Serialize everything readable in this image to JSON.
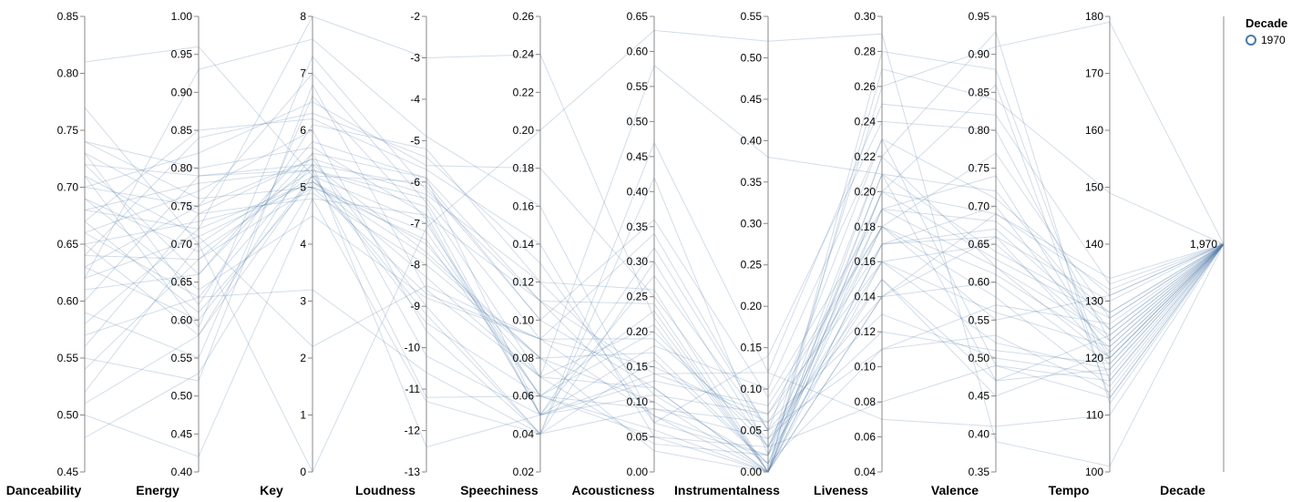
{
  "chart_data": {
    "type": "parallel_coordinates",
    "line_color": "#4c78a8",
    "axis_color": "#888888",
    "axes": [
      {
        "name": "Danceability",
        "min": 0.45,
        "max": 0.85,
        "ticks": [
          "0.45",
          "0.50",
          "0.55",
          "0.60",
          "0.65",
          "0.70",
          "0.75",
          "0.80",
          "0.85"
        ]
      },
      {
        "name": "Energy",
        "min": 0.4,
        "max": 1.0,
        "ticks": [
          "0.40",
          "0.45",
          "0.50",
          "0.55",
          "0.60",
          "0.65",
          "0.70",
          "0.75",
          "0.80",
          "0.85",
          "0.90",
          "0.95",
          "1.00"
        ]
      },
      {
        "name": "Key",
        "min": 0,
        "max": 8,
        "ticks": [
          "0",
          "1",
          "2",
          "3",
          "4",
          "5",
          "6",
          "7",
          "8"
        ]
      },
      {
        "name": "Loudness",
        "min": -13,
        "max": -2,
        "ticks": [
          "-13",
          "-12",
          "-11",
          "-10",
          "-9",
          "-8",
          "-7",
          "-6",
          "-5",
          "-4",
          "-3",
          "-2"
        ]
      },
      {
        "name": "Speechiness",
        "min": 0.02,
        "max": 0.26,
        "ticks": [
          "0.02",
          "0.04",
          "0.06",
          "0.08",
          "0.10",
          "0.12",
          "0.14",
          "0.16",
          "0.18",
          "0.20",
          "0.22",
          "0.24",
          "0.26"
        ]
      },
      {
        "name": "Acousticness",
        "min": 0.0,
        "max": 0.65,
        "ticks": [
          "0.00",
          "0.05",
          "0.10",
          "0.15",
          "0.20",
          "0.25",
          "0.30",
          "0.35",
          "0.40",
          "0.45",
          "0.50",
          "0.55",
          "0.60",
          "0.65"
        ]
      },
      {
        "name": "Instrumentalness",
        "min": 0.0,
        "max": 0.55,
        "ticks": [
          "0.00",
          "0.05",
          "0.10",
          "0.15",
          "0.20",
          "0.25",
          "0.30",
          "0.35",
          "0.40",
          "0.45",
          "0.50",
          "0.55"
        ]
      },
      {
        "name": "Liveness",
        "min": 0.04,
        "max": 0.3,
        "ticks": [
          "0.04",
          "0.06",
          "0.08",
          "0.10",
          "0.12",
          "0.14",
          "0.16",
          "0.18",
          "0.20",
          "0.22",
          "0.24",
          "0.26",
          "0.28",
          "0.30"
        ]
      },
      {
        "name": "Valence",
        "min": 0.35,
        "max": 0.95,
        "ticks": [
          "0.35",
          "0.40",
          "0.45",
          "0.50",
          "0.55",
          "0.60",
          "0.65",
          "0.70",
          "0.75",
          "0.80",
          "0.85",
          "0.90",
          "0.95"
        ]
      },
      {
        "name": "Tempo",
        "min": 100,
        "max": 180,
        "ticks": [
          "100",
          "110",
          "120",
          "130",
          "140",
          "150",
          "160",
          "170",
          "180"
        ]
      },
      {
        "name": "Decade",
        "min": 1969,
        "max": 1971,
        "ticks": [
          "1,970"
        ]
      }
    ],
    "legend": {
      "title": "Decade",
      "entries": [
        "1970"
      ],
      "placement": "top-right"
    },
    "records": [
      [
        0.81,
        0.96,
        5.2,
        -6.0,
        0.1,
        0.12,
        0.0,
        0.22,
        0.62,
        120,
        1970
      ],
      [
        0.77,
        0.7,
        5.3,
        -6.4,
        0.09,
        0.08,
        0.02,
        0.19,
        0.68,
        128,
        1970
      ],
      [
        0.74,
        0.76,
        5.0,
        -7.2,
        0.06,
        0.05,
        0.03,
        0.16,
        0.65,
        123,
        1970
      ],
      [
        0.73,
        0.62,
        6.1,
        -5.2,
        0.12,
        0.26,
        0.0,
        0.14,
        0.6,
        119,
        1970
      ],
      [
        0.73,
        0.74,
        4.8,
        -6.8,
        0.05,
        0.11,
        0.07,
        0.18,
        0.55,
        131,
        1970
      ],
      [
        0.72,
        0.79,
        5.4,
        -7.7,
        0.08,
        0.17,
        0.01,
        0.21,
        0.72,
        125,
        1970
      ],
      [
        0.72,
        0.66,
        5.6,
        -5.9,
        0.05,
        0.32,
        0.05,
        0.23,
        0.49,
        113,
        1970
      ],
      [
        0.71,
        0.71,
        5.1,
        -8.3,
        0.07,
        0.21,
        0.0,
        0.17,
        0.7,
        121,
        1970
      ],
      [
        0.71,
        0.59,
        7.3,
        -6.2,
        0.11,
        0.14,
        0.12,
        0.25,
        0.82,
        133,
        1970
      ],
      [
        0.7,
        0.75,
        5.5,
        -9.0,
        0.04,
        0.09,
        0.06,
        0.13,
        0.5,
        117,
        1970
      ],
      [
        0.7,
        0.82,
        6.5,
        -5.6,
        0.18,
        0.25,
        0.03,
        0.2,
        0.63,
        127,
        1970
      ],
      [
        0.69,
        0.69,
        5.2,
        -7.0,
        0.06,
        0.06,
        0.0,
        0.28,
        0.88,
        116,
        1970
      ],
      [
        0.69,
        0.64,
        4.5,
        -8.8,
        0.09,
        0.19,
        0.04,
        0.15,
        0.47,
        124,
        1970
      ],
      [
        0.68,
        0.78,
        5.3,
        -6.6,
        0.05,
        0.13,
        0.08,
        0.18,
        0.61,
        122,
        1970
      ],
      [
        0.68,
        0.72,
        8.0,
        -3.0,
        0.24,
        0.22,
        0.0,
        0.17,
        0.66,
        130,
        1970
      ],
      [
        0.67,
        0.61,
        5.1,
        -7.5,
        0.07,
        0.04,
        0.02,
        0.22,
        0.93,
        112,
        1970
      ],
      [
        0.66,
        0.77,
        6.0,
        -9.6,
        0.04,
        0.16,
        0.01,
        0.11,
        0.57,
        126,
        1970
      ],
      [
        0.66,
        0.63,
        5.4,
        -6.1,
        0.1,
        0.36,
        0.09,
        0.19,
        0.74,
        120,
        1970
      ],
      [
        0.65,
        0.73,
        4.9,
        -8.0,
        0.08,
        0.1,
        0.0,
        0.16,
        0.52,
        118,
        1970
      ],
      [
        0.65,
        0.58,
        5.6,
        -10.2,
        0.05,
        0.28,
        0.05,
        0.14,
        0.69,
        134,
        1970
      ],
      [
        0.64,
        0.84,
        6.3,
        -5.4,
        0.13,
        0.07,
        0.14,
        0.24,
        0.8,
        123,
        1970
      ],
      [
        0.64,
        0.68,
        5.0,
        -7.4,
        0.06,
        0.2,
        0.03,
        0.18,
        0.58,
        115,
        1970
      ],
      [
        0.63,
        0.75,
        7.0,
        -6.5,
        0.07,
        0.12,
        0.0,
        0.21,
        0.64,
        128,
        1970
      ],
      [
        0.63,
        0.6,
        5.2,
        -9.2,
        0.04,
        0.42,
        0.02,
        0.15,
        0.45,
        121,
        1970
      ],
      [
        0.62,
        0.71,
        2.2,
        -8.5,
        0.09,
        0.15,
        0.06,
        0.17,
        0.67,
        125,
        1970
      ],
      [
        0.61,
        0.66,
        5.8,
        -5.9,
        0.11,
        0.24,
        0.0,
        0.2,
        0.86,
        113,
        1970
      ],
      [
        0.6,
        0.79,
        5.3,
        -11.2,
        0.06,
        0.09,
        0.04,
        0.12,
        0.51,
        119,
        1970
      ],
      [
        0.59,
        0.55,
        6.6,
        -6.9,
        0.05,
        0.18,
        0.1,
        0.23,
        0.71,
        131,
        1970
      ],
      [
        0.58,
        0.72,
        5.1,
        -7.8,
        0.08,
        0.03,
        0.0,
        0.19,
        0.62,
        124,
        1970
      ],
      [
        0.57,
        0.63,
        3.2,
        -10.6,
        0.04,
        0.3,
        0.03,
        0.08,
        0.49,
        116,
        1970
      ],
      [
        0.56,
        0.74,
        5.5,
        -6.3,
        0.12,
        0.11,
        0.01,
        0.18,
        0.77,
        127,
        1970
      ],
      [
        0.55,
        0.52,
        6.8,
        -8.6,
        0.07,
        0.58,
        0.38,
        0.21,
        0.47,
        118,
        1970
      ],
      [
        0.54,
        0.68,
        5.4,
        -12.4,
        0.05,
        0.14,
        0.07,
        0.16,
        0.56,
        122,
        1970
      ],
      [
        0.52,
        0.7,
        0.0,
        -7.1,
        0.2,
        0.63,
        0.52,
        0.29,
        0.39,
        101,
        1970
      ],
      [
        0.51,
        0.58,
        5.2,
        -9.4,
        0.06,
        0.23,
        0.0,
        0.14,
        0.66,
        120,
        1970
      ],
      [
        0.5,
        0.42,
        4.8,
        -11.3,
        0.04,
        0.47,
        0.12,
        0.07,
        0.41,
        110,
        1970
      ],
      [
        0.48,
        0.53,
        5.0,
        -8.7,
        0.09,
        0.34,
        0.05,
        0.11,
        0.53,
        114,
        1970
      ],
      [
        0.62,
        0.93,
        7.6,
        -4.9,
        0.16,
        0.07,
        0.02,
        0.26,
        0.91,
        179,
        1970
      ],
      [
        0.67,
        0.85,
        6.2,
        -5.7,
        0.14,
        0.05,
        0.0,
        0.27,
        0.84,
        149,
        1970
      ],
      [
        0.74,
        0.8,
        5.7,
        -6.8,
        0.11,
        0.08,
        0.0,
        0.2,
        0.69,
        132,
        1970
      ]
    ]
  }
}
